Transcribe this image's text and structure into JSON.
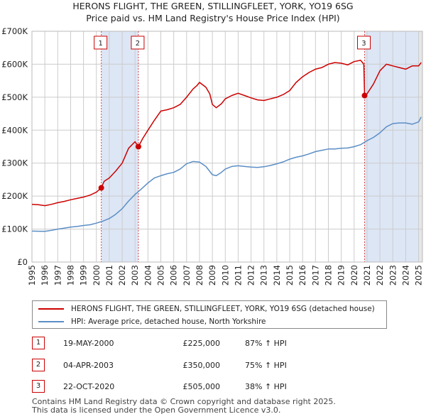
{
  "title_line1": "HERONS FLIGHT, THE GREEN, STILLINGFLEET, YORK, YO19 6SG",
  "title_line2": "Price paid vs. HM Land Registry's House Price Index (HPI)",
  "colors": {
    "price_line": "#cc0000",
    "hpi_line": "#5b8ec6",
    "band": "#dde6f5",
    "grid": "#cccccc",
    "marker_border": "#cc0000"
  },
  "legend": {
    "price_label": "HERONS FLIGHT, THE GREEN, STILLINGFLEET, YORK, YO19 6SG (detached house)",
    "hpi_label": "HPI: Average price, detached house, North Yorkshire"
  },
  "transactions": [
    {
      "num": "1",
      "date": "19-MAY-2000",
      "price": "£225,000",
      "hpi": "87% ↑ HPI"
    },
    {
      "num": "2",
      "date": "04-APR-2003",
      "price": "£350,000",
      "hpi": "75% ↑ HPI"
    },
    {
      "num": "3",
      "date": "22-OCT-2020",
      "price": "£505,000",
      "hpi": "38% ↑ HPI"
    }
  ],
  "footer": {
    "line1": "Contains HM Land Registry data © Crown copyright and database right 2025.",
    "line2": "This data is licensed under the Open Government Licence v3.0."
  },
  "chart_data": {
    "type": "line",
    "title": "HERONS FLIGHT, THE GREEN, STILLINGFLEET, YORK, YO19 6SG",
    "subtitle": "Price paid vs. HM Land Registry's House Price Index (HPI)",
    "xlabel": "",
    "ylabel": "",
    "xlim": [
      1995,
      2025.3
    ],
    "ylim": [
      0,
      700000
    ],
    "x_ticks": [
      "1995",
      "1996",
      "1997",
      "1998",
      "1999",
      "2000",
      "2001",
      "2002",
      "2003",
      "2004",
      "2005",
      "2006",
      "2007",
      "2008",
      "2009",
      "2010",
      "2011",
      "2012",
      "2013",
      "2014",
      "2015",
      "2016",
      "2017",
      "2018",
      "2019",
      "2020",
      "2021",
      "2022",
      "2023",
      "2024",
      "2025"
    ],
    "y_ticks": [
      {
        "value": 0,
        "label": "£0"
      },
      {
        "value": 100000,
        "label": "£100K"
      },
      {
        "value": 200000,
        "label": "£200K"
      },
      {
        "value": 300000,
        "label": "£300K"
      },
      {
        "value": 400000,
        "label": "£400K"
      },
      {
        "value": 500000,
        "label": "£500K"
      },
      {
        "value": 600000,
        "label": "£600K"
      },
      {
        "value": 700000,
        "label": "£700K"
      }
    ],
    "grid": true,
    "legend_position": "below",
    "series": [
      {
        "name": "HERONS FLIGHT, THE GREEN, STILLINGFLEET, YORK, YO19 6SG (detached house)",
        "color": "#cc0000",
        "x": [
          1995,
          1995.5,
          1996,
          1996.5,
          1997,
          1997.5,
          1998,
          1998.5,
          1999,
          1999.5,
          2000,
          2000.38,
          2000.6,
          2001,
          2001.5,
          2002,
          2002.5,
          2003,
          2003.26,
          2003.6,
          2004,
          2004.5,
          2005,
          2005.5,
          2006,
          2006.5,
          2007,
          2007.5,
          2007.8,
          2008,
          2008.5,
          2008.8,
          2009,
          2009.3,
          2009.7,
          2010,
          2010.5,
          2011,
          2011.5,
          2012,
          2012.5,
          2013,
          2013.5,
          2014,
          2014.5,
          2015,
          2015.5,
          2016,
          2016.5,
          2017,
          2017.5,
          2018,
          2018.5,
          2019,
          2019.5,
          2020,
          2020.5,
          2020.75,
          2020.81,
          2021,
          2021.5,
          2022,
          2022.5,
          2023,
          2023.5,
          2024,
          2024.5,
          2025,
          2025.2
        ],
        "values": [
          175000,
          174000,
          171000,
          175000,
          180000,
          184000,
          189000,
          193000,
          197000,
          203000,
          212000,
          225000,
          245000,
          255000,
          276000,
          300000,
          345000,
          365000,
          350000,
          375000,
          400000,
          430000,
          458000,
          462000,
          468000,
          478000,
          500000,
          525000,
          535000,
          545000,
          530000,
          510000,
          478000,
          468000,
          480000,
          495000,
          505000,
          512000,
          505000,
          498000,
          492000,
          490000,
          495000,
          500000,
          508000,
          520000,
          545000,
          562000,
          575000,
          585000,
          590000,
          600000,
          605000,
          603000,
          598000,
          608000,
          612000,
          600000,
          505000,
          510000,
          540000,
          580000,
          600000,
          595000,
          590000,
          585000,
          595000,
          595000,
          605000
        ]
      },
      {
        "name": "HPI: Average price, detached house, North Yorkshire",
        "color": "#5b8ec6",
        "x": [
          1995,
          1995.5,
          1996,
          1996.5,
          1997,
          1997.5,
          1998,
          1998.5,
          1999,
          1999.5,
          2000,
          2000.5,
          2001,
          2001.5,
          2002,
          2002.5,
          2003,
          2003.5,
          2004,
          2004.5,
          2005,
          2005.5,
          2006,
          2006.5,
          2007,
          2007.5,
          2008,
          2008.5,
          2009,
          2009.3,
          2009.7,
          2010,
          2010.5,
          2011,
          2011.5,
          2012,
          2012.5,
          2013,
          2013.5,
          2014,
          2014.5,
          2015,
          2015.5,
          2016,
          2016.5,
          2017,
          2017.5,
          2018,
          2018.5,
          2019,
          2019.5,
          2020,
          2020.5,
          2021,
          2021.5,
          2022,
          2022.5,
          2023,
          2023.5,
          2024,
          2024.5,
          2025,
          2025.2
        ],
        "values": [
          94000,
          93500,
          93000,
          96000,
          100000,
          103000,
          106000,
          108000,
          111000,
          113000,
          118000,
          124000,
          132000,
          145000,
          162000,
          185000,
          205000,
          222000,
          240000,
          255000,
          262000,
          268000,
          272000,
          282000,
          298000,
          305000,
          303000,
          290000,
          265000,
          262000,
          272000,
          282000,
          290000,
          292000,
          290000,
          288000,
          287000,
          289000,
          293000,
          298000,
          304000,
          312000,
          318000,
          322000,
          328000,
          335000,
          339000,
          343000,
          343000,
          345000,
          346000,
          350000,
          356000,
          368000,
          378000,
          392000,
          410000,
          420000,
          422000,
          422000,
          418000,
          425000,
          440000
        ]
      }
    ],
    "sales": [
      {
        "label": "1",
        "x": 2000.38,
        "value": 225000
      },
      {
        "label": "2",
        "x": 2003.26,
        "value": 350000
      },
      {
        "label": "3",
        "x": 2020.81,
        "value": 505000
      }
    ]
  }
}
